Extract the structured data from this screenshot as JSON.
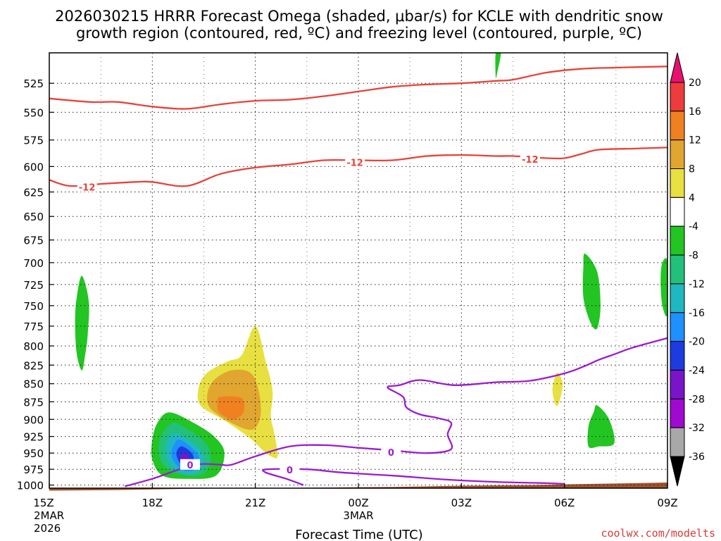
{
  "chart_data": {
    "type": "heatmap",
    "title_line1": "2026030215 HRRR Forecast Omega (shaded, μbar/s) for KCLE with dendritic snow",
    "title_line2": "growth region (contoured, red, ºC) and freezing level (contoured, purple, ºC)",
    "xlabel": "Forecast Time (UTC)",
    "x_hours_range": [
      15,
      33
    ],
    "x_ticks": [
      {
        "hour": 15,
        "label": "15Z",
        "sub1": "2MAR",
        "sub2": "2026"
      },
      {
        "hour": 18,
        "label": "18Z"
      },
      {
        "hour": 21,
        "label": "21Z"
      },
      {
        "hour": 24,
        "label": "00Z",
        "sub1": "3MAR"
      },
      {
        "hour": 27,
        "label": "03Z"
      },
      {
        "hour": 30,
        "label": "06Z"
      },
      {
        "hour": 33,
        "label": "09Z"
      }
    ],
    "y_axis": {
      "scale": "log-pressure",
      "units": "mb",
      "range": [
        1005,
        500
      ]
    },
    "y_ticks": [
      525,
      550,
      575,
      600,
      625,
      650,
      675,
      700,
      725,
      750,
      775,
      800,
      825,
      850,
      875,
      900,
      925,
      950,
      975,
      1000
    ],
    "colorbar": {
      "labels": [
        20,
        16,
        12,
        8,
        4,
        -4,
        -8,
        -12,
        -16,
        -20,
        -24,
        -28,
        -32,
        -36
      ],
      "colors": [
        "#e8106e",
        "#ee3b3b",
        "#f08020",
        "#e0a630",
        "#e8e040",
        "#ffffff",
        "#22c522",
        "#22c07a",
        "#20b8c0",
        "#1e90ff",
        "#1c3ce0",
        "#7a14c8",
        "#a00ad0",
        "#a8a8a8",
        "#000000"
      ]
    },
    "omega_regions": [
      {
        "level": -8,
        "color": "#22c522",
        "points": [
          [
            15.95,
            715
          ],
          [
            16.15,
            745
          ],
          [
            16.12,
            785
          ],
          [
            16.05,
            810
          ],
          [
            15.95,
            832
          ],
          [
            15.8,
            810
          ],
          [
            15.75,
            770
          ],
          [
            15.8,
            740
          ]
        ]
      },
      {
        "level": -8,
        "color": "#22c522",
        "points": [
          [
            28.0,
            500
          ],
          [
            28.15,
            500
          ],
          [
            28.05,
            515
          ],
          [
            28.0,
            520
          ]
        ]
      },
      {
        "level": -8,
        "color": "#22c522",
        "points": [
          [
            30.6,
            690
          ],
          [
            30.95,
            710
          ],
          [
            31.05,
            750
          ],
          [
            30.95,
            778
          ],
          [
            30.75,
            770
          ],
          [
            30.55,
            740
          ],
          [
            30.55,
            705
          ]
        ]
      },
      {
        "level": -8,
        "color": "#22c522",
        "points": [
          [
            32.85,
            700
          ],
          [
            33.0,
            700
          ],
          [
            33.0,
            760
          ],
          [
            32.85,
            750
          ],
          [
            32.8,
            720
          ]
        ]
      },
      {
        "level": -8,
        "color": "#22c522",
        "points": [
          [
            30.95,
            880
          ],
          [
            31.3,
            900
          ],
          [
            31.45,
            935
          ],
          [
            31.0,
            940
          ],
          [
            30.7,
            940
          ],
          [
            30.7,
            910
          ],
          [
            30.85,
            890
          ]
        ]
      },
      {
        "level": 4,
        "color": "#e8e040",
        "points": [
          [
            29.8,
            835
          ],
          [
            29.95,
            850
          ],
          [
            29.85,
            875
          ],
          [
            29.75,
            880
          ],
          [
            29.65,
            860
          ],
          [
            29.7,
            845
          ]
        ]
      },
      {
        "level": 4,
        "color": "#e8e040",
        "points": [
          [
            21.0,
            775
          ],
          [
            21.3,
            820
          ],
          [
            21.5,
            860
          ],
          [
            21.45,
            895
          ],
          [
            21.55,
            920
          ],
          [
            21.65,
            955
          ],
          [
            21.45,
            955
          ],
          [
            21.2,
            945
          ],
          [
            20.9,
            930
          ],
          [
            20.5,
            915
          ],
          [
            20.05,
            900
          ],
          [
            19.4,
            880
          ],
          [
            19.35,
            855
          ],
          [
            19.6,
            835
          ],
          [
            20.2,
            820
          ],
          [
            20.6,
            812
          ]
        ]
      },
      {
        "level": 8,
        "color": "#e0a630",
        "points": [
          [
            20.3,
            832
          ],
          [
            20.85,
            835
          ],
          [
            21.1,
            860
          ],
          [
            21.15,
            895
          ],
          [
            20.9,
            915
          ],
          [
            20.3,
            905
          ],
          [
            19.7,
            885
          ],
          [
            19.6,
            865
          ],
          [
            19.8,
            845
          ]
        ]
      },
      {
        "level": 12,
        "color": "#f08020",
        "points": [
          [
            20.0,
            868
          ],
          [
            20.6,
            870
          ],
          [
            20.65,
            890
          ],
          [
            20.35,
            900
          ],
          [
            19.95,
            890
          ],
          [
            19.9,
            875
          ]
        ]
      },
      {
        "level": -8,
        "color": "#22c522",
        "points": [
          [
            18.5,
            890
          ],
          [
            19.2,
            905
          ],
          [
            19.8,
            925
          ],
          [
            20.1,
            950
          ],
          [
            19.85,
            985
          ],
          [
            19.0,
            990
          ],
          [
            18.3,
            985
          ],
          [
            18.0,
            960
          ],
          [
            18.0,
            930
          ],
          [
            18.15,
            905
          ]
        ]
      },
      {
        "level": -12,
        "color": "#22c07a",
        "points": [
          [
            18.6,
            905
          ],
          [
            19.05,
            915
          ],
          [
            19.55,
            935
          ],
          [
            19.7,
            960
          ],
          [
            19.5,
            982
          ],
          [
            19.0,
            985
          ],
          [
            18.45,
            975
          ],
          [
            18.2,
            955
          ],
          [
            18.25,
            925
          ]
        ]
      },
      {
        "level": -16,
        "color": "#20b8c0",
        "points": [
          [
            18.65,
            920
          ],
          [
            19.0,
            928
          ],
          [
            19.4,
            945
          ],
          [
            19.5,
            965
          ],
          [
            19.3,
            980
          ],
          [
            18.9,
            982
          ],
          [
            18.55,
            970
          ],
          [
            18.4,
            952
          ],
          [
            18.45,
            930
          ]
        ]
      },
      {
        "level": -20,
        "color": "#1e90ff",
        "points": [
          [
            18.75,
            930
          ],
          [
            19.1,
            940
          ],
          [
            19.35,
            955
          ],
          [
            19.35,
            972
          ],
          [
            19.0,
            978
          ],
          [
            18.7,
            968
          ],
          [
            18.55,
            950
          ]
        ]
      },
      {
        "level": -24,
        "color": "#1c3ce0",
        "points": [
          [
            18.85,
            940
          ],
          [
            19.15,
            950
          ],
          [
            19.2,
            965
          ],
          [
            19.0,
            972
          ],
          [
            18.8,
            965
          ],
          [
            18.7,
            950
          ]
        ]
      },
      {
        "level": -28,
        "color": "#7a14c8",
        "points": [
          [
            18.9,
            950
          ],
          [
            19.05,
            955
          ],
          [
            19.05,
            965
          ],
          [
            18.9,
            968
          ],
          [
            18.8,
            960
          ]
        ]
      }
    ],
    "dgz_contours": [
      {
        "color": "#e8423a",
        "label": "",
        "points": [
          [
            15.0,
            538
          ],
          [
            16.2,
            541
          ],
          [
            17.0,
            541
          ],
          [
            18.0,
            545
          ],
          [
            19.0,
            547
          ],
          [
            20.0,
            543
          ],
          [
            21.0,
            540
          ],
          [
            22.0,
            539
          ],
          [
            23.0,
            536
          ],
          [
            24.0,
            532
          ],
          [
            25.0,
            528
          ],
          [
            26.0,
            526
          ],
          [
            27.0,
            525
          ],
          [
            28.0,
            523
          ],
          [
            28.5,
            522
          ],
          [
            29.5,
            516
          ],
          [
            30.5,
            513
          ],
          [
            31.5,
            512
          ],
          [
            33.0,
            511
          ]
        ]
      },
      {
        "color": "#e8423a",
        "label": "-12",
        "label_at": [
          16.1,
          620
        ],
        "label_at2": [
          23.9,
          596
        ],
        "label_at3": [
          29.0,
          593
        ],
        "points": [
          [
            15.0,
            613
          ],
          [
            15.6,
            619
          ],
          [
            16.5,
            617
          ],
          [
            17.5,
            615
          ],
          [
            18.0,
            615
          ],
          [
            19.0,
            619
          ],
          [
            20.0,
            607
          ],
          [
            21.0,
            601
          ],
          [
            22.0,
            598
          ],
          [
            23.0,
            594
          ],
          [
            24.0,
            594
          ],
          [
            25.0,
            594
          ],
          [
            26.0,
            590
          ],
          [
            27.0,
            589
          ],
          [
            28.0,
            590
          ],
          [
            28.5,
            590
          ],
          [
            29.5,
            592
          ],
          [
            30.0,
            592
          ],
          [
            30.5,
            588
          ],
          [
            31.0,
            584
          ],
          [
            32.0,
            583
          ],
          [
            33.0,
            582
          ]
        ]
      }
    ],
    "freezing_contours": [
      {
        "color": "#9b1ccf",
        "label": "0",
        "label_at": [
          19.1,
          968
        ],
        "label_at2": [
          24.95,
          949
        ],
        "points": [
          [
            17.2,
            1002
          ],
          [
            18.0,
            990
          ],
          [
            18.8,
            975
          ],
          [
            19.4,
            967
          ],
          [
            20.0,
            968
          ],
          [
            20.3,
            968
          ],
          [
            21.0,
            955
          ],
          [
            22.0,
            940
          ],
          [
            23.0,
            938
          ],
          [
            24.0,
            942
          ],
          [
            25.0,
            946
          ],
          [
            26.0,
            950
          ],
          [
            26.7,
            944
          ],
          [
            26.6,
            922
          ],
          [
            26.7,
            905
          ],
          [
            26.3,
            898
          ],
          [
            25.8,
            893
          ],
          [
            25.4,
            883
          ],
          [
            25.3,
            868
          ],
          [
            24.85,
            855
          ],
          [
            25.2,
            852
          ],
          [
            25.8,
            845
          ],
          [
            26.8,
            852
          ],
          [
            28.0,
            848
          ],
          [
            29.0,
            846
          ],
          [
            30.0,
            836
          ],
          [
            30.6,
            826
          ],
          [
            31.0,
            818
          ],
          [
            31.5,
            810
          ],
          [
            32.0,
            802
          ],
          [
            33.0,
            790
          ]
        ]
      },
      {
        "color": "#9b1ccf",
        "label": "0",
        "label_at": [
          22.0,
          976
        ],
        "points": [
          [
            22.4,
            1000
          ],
          [
            21.9,
            990
          ],
          [
            21.3,
            980
          ],
          [
            21.35,
            975
          ],
          [
            22.5,
            975
          ],
          [
            23.5,
            980
          ],
          [
            25.0,
            985
          ],
          [
            26.5,
            991
          ],
          [
            28.0,
            995
          ],
          [
            29.5,
            997
          ],
          [
            30.0,
            998
          ]
        ]
      }
    ],
    "terrain_color": "#a0522d",
    "terrain": [
      [
        15.0,
        1009
      ],
      [
        17.0,
        1008
      ],
      [
        19.0,
        1006
      ],
      [
        21.0,
        1005
      ],
      [
        23.0,
        1004
      ],
      [
        25.0,
        1003
      ],
      [
        27.0,
        1001
      ],
      [
        29.0,
        1000
      ],
      [
        31.0,
        998
      ],
      [
        33.0,
        996
      ]
    ]
  },
  "watermark": "coolwx.com/modelts"
}
